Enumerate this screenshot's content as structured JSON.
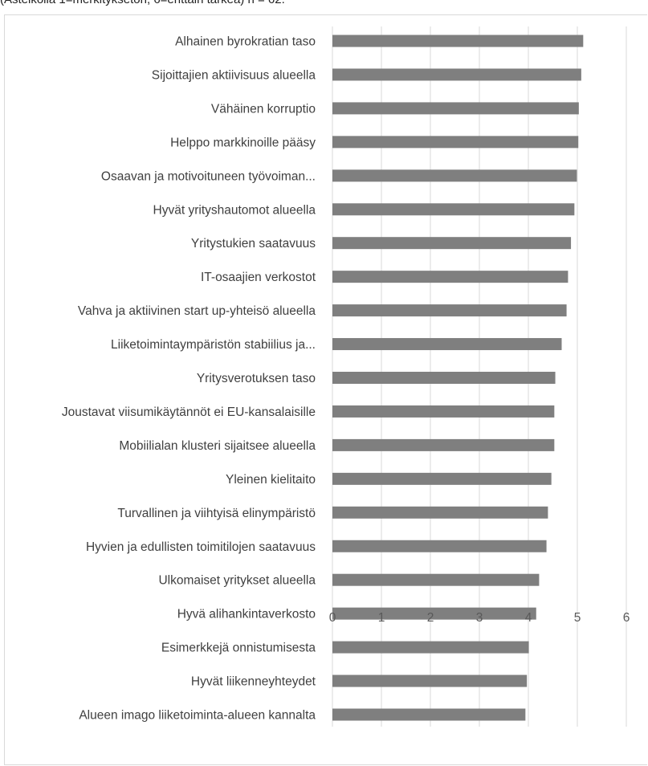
{
  "caption": "(Asteikolla 1=merkityksetön, 6=erittäin tärkeä) n = 62.",
  "colors": {
    "bar": "#7f7f7f",
    "grid": "#d9d9d9",
    "text": "#404040"
  },
  "chart_data": {
    "type": "bar",
    "orientation": "horizontal",
    "categories": [
      "Alhainen byrokratian taso",
      "Sijoittajien aktiivisuus alueella",
      "Vähäinen korruptio",
      "Helppo markkinoille pääsy",
      "Osaavan ja motivoituneen työvoiman...",
      "Hyvät yrityshautomot alueella",
      "Yritystukien saatavuus",
      "IT-osaajien verkostot",
      "Vahva ja aktiivinen start up-yhteisö alueella",
      "Liiketoimintaympäristön stabiilius ja...",
      "Yritysverotuksen taso",
      "Joustavat viisumikäytännöt ei EU-kansalaisille",
      "Mobiilialan klusteri sijaitsee alueella",
      "Yleinen kielitaito",
      "Turvallinen ja viihtyisä elinympäristö",
      "Hyvien ja edullisten toimitilojen saatavuus",
      "Ulkomaiset yritykset alueella",
      "Hyvä alihankintaverkosto",
      "Esimerkkejä onnistumisesta",
      "Hyvät liikenneyhteydet",
      "Alueen imago liiketoiminta-alueen kannalta"
    ],
    "values": [
      5.12,
      5.08,
      5.03,
      5.02,
      4.99,
      4.94,
      4.87,
      4.81,
      4.78,
      4.68,
      4.55,
      4.53,
      4.53,
      4.47,
      4.4,
      4.37,
      4.22,
      4.16,
      4.01,
      3.97,
      3.94
    ],
    "xlim": [
      0,
      6
    ],
    "xticks": [
      "0",
      "1",
      "2",
      "3",
      "4",
      "5",
      "6"
    ],
    "grid": true,
    "legend": "none"
  }
}
